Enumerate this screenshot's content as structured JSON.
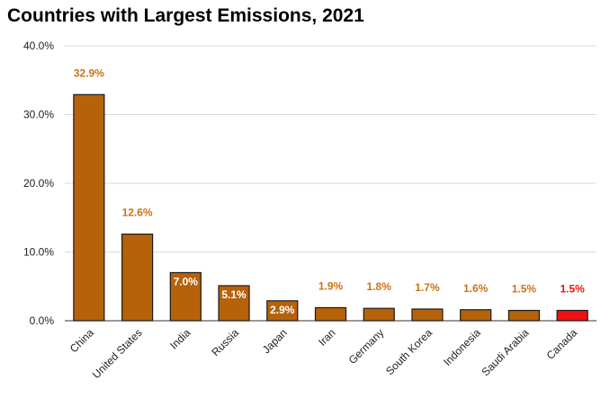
{
  "chart_data": {
    "type": "bar",
    "title": "Countries with Largest Emissions, 2021",
    "xlabel": "",
    "ylabel": "",
    "ylim": [
      0,
      40
    ],
    "yticks": [
      "0.0%",
      "10.0%",
      "20.0%",
      "30.0%",
      "40.0%"
    ],
    "grid": true,
    "legend": "none",
    "categories": [
      "China",
      "United States",
      "India",
      "Russia",
      "Japan",
      "Iran",
      "Germany",
      "South Korea",
      "Indonesia",
      "Saudi Arabia",
      "Canada"
    ],
    "values": [
      32.9,
      12.6,
      7.0,
      5.1,
      2.9,
      1.9,
      1.8,
      1.7,
      1.6,
      1.5,
      1.5
    ],
    "data_labels": [
      "32.9%",
      "12.6%",
      "7.0%",
      "5.1%",
      "2.9%",
      "1.9%",
      "1.8%",
      "1.7%",
      "1.6%",
      "1.5%",
      "1.5%"
    ],
    "colors": {
      "bar": "#b5620a",
      "highlight_bar": "#ee1111",
      "highlight_category": "Canada",
      "label": "#c8741a",
      "highlight_label": "#ee1111",
      "inside_label": "#ffffff",
      "grid": "#d9d9d9"
    }
  }
}
